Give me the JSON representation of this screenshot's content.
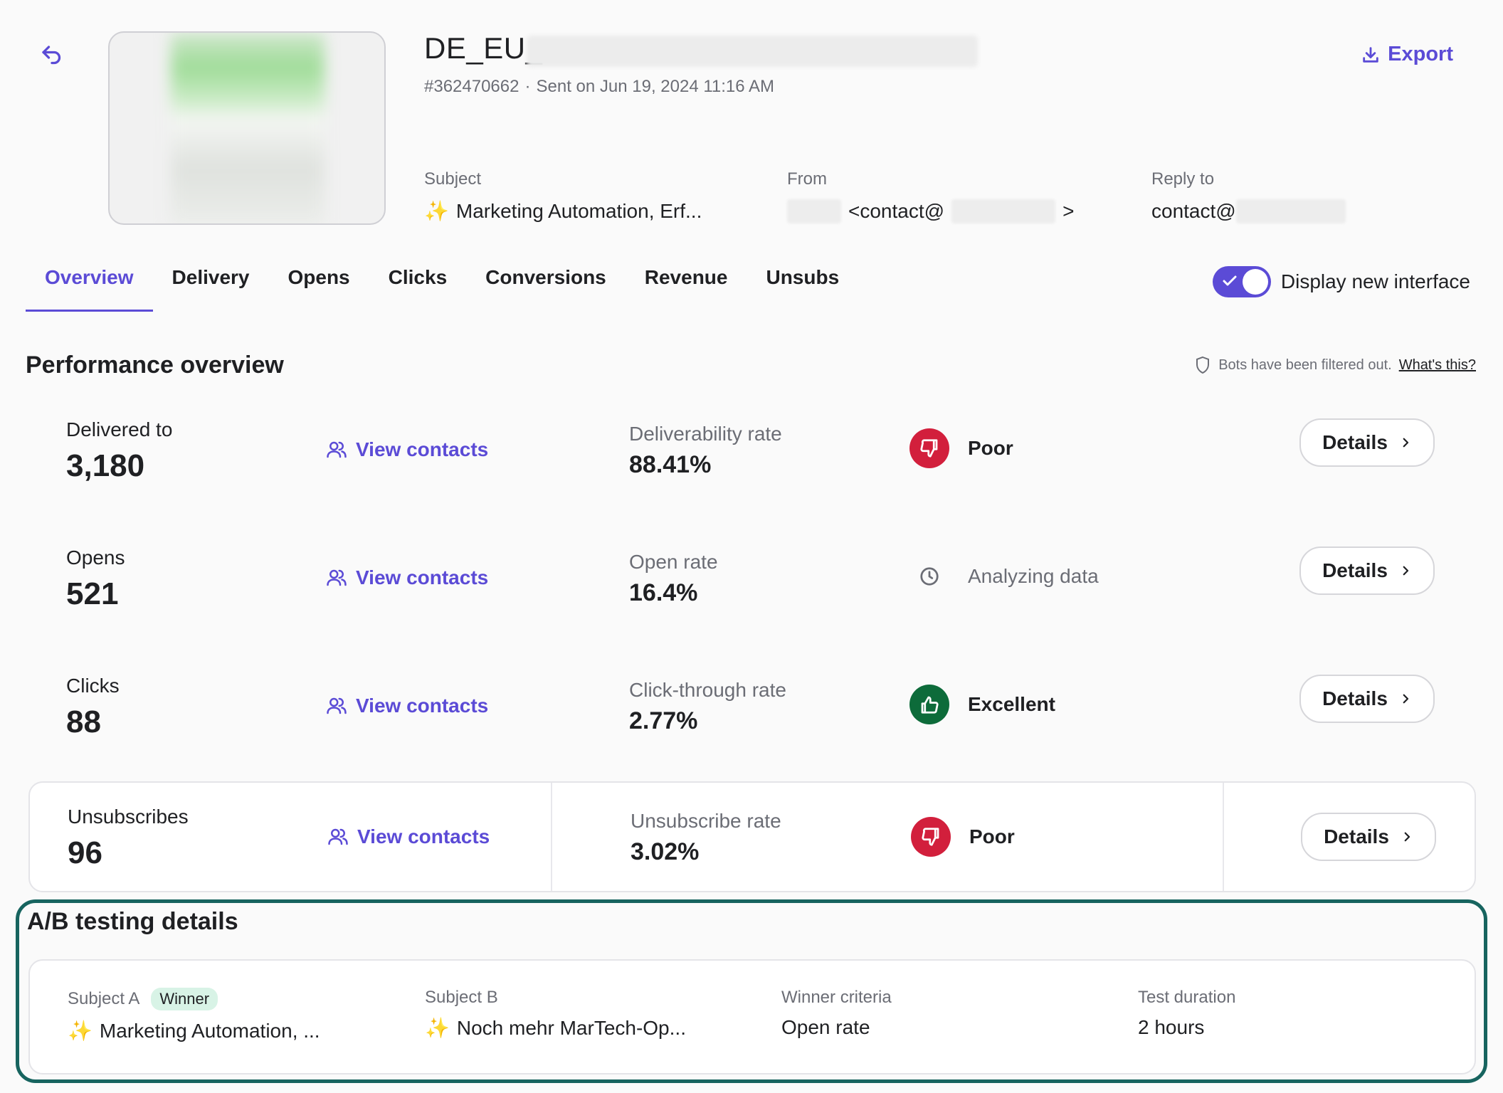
{
  "header": {
    "title": "DE_EU_",
    "campaign_id": "#362470662",
    "sent_on": "Sent on Jun 19, 2024 11:16 AM",
    "export_label": "Export"
  },
  "fields": {
    "subject_label": "Subject",
    "subject_value": "Marketing Automation, Erf...",
    "from_label": "From",
    "from_value_prefix": "<contact@",
    "from_value_suffix": ">",
    "reply_label": "Reply to",
    "reply_value": "contact@"
  },
  "tabs": [
    {
      "label": "Overview",
      "active": true
    },
    {
      "label": "Delivery"
    },
    {
      "label": "Opens"
    },
    {
      "label": "Clicks"
    },
    {
      "label": "Conversions"
    },
    {
      "label": "Revenue"
    },
    {
      "label": "Unsubs"
    }
  ],
  "toggle": {
    "label": "Display new interface",
    "on": true
  },
  "performance": {
    "title": "Performance overview",
    "bots_text": "Bots have been filtered out.",
    "bots_link": "What's this?",
    "view_contacts_label": "View contacts",
    "details_label": "Details",
    "rows": [
      {
        "label": "Delivered to",
        "value": "3,180",
        "rate_label": "Deliverability rate",
        "rate_value": "88.41%",
        "status": "Poor"
      },
      {
        "label": "Opens",
        "value": "521",
        "rate_label": "Open rate",
        "rate_value": "16.4%",
        "status": "Analyzing data"
      },
      {
        "label": "Clicks",
        "value": "88",
        "rate_label": "Click-through rate",
        "rate_value": "2.77%",
        "status": "Excellent"
      },
      {
        "label": "Unsubscribes",
        "value": "96",
        "rate_label": "Unsubscribe rate",
        "rate_value": "3.02%",
        "status": "Poor"
      }
    ]
  },
  "ab_test": {
    "title": "A/B testing details",
    "subject_a_label": "Subject A",
    "winner_badge": "Winner",
    "subject_a_value": "Marketing Automation, ...",
    "subject_b_label": "Subject B",
    "subject_b_value": "Noch mehr MarTech-Op...",
    "criteria_label": "Winner criteria",
    "criteria_value": "Open rate",
    "duration_label": "Test duration",
    "duration_value": "2 hours"
  },
  "colors": {
    "accent": "#5b4bd6",
    "poor": "#d21f3c",
    "excellent": "#0d6b3a",
    "ab_highlight": "#17645f",
    "winner_badge_bg": "#d8f3e6"
  }
}
